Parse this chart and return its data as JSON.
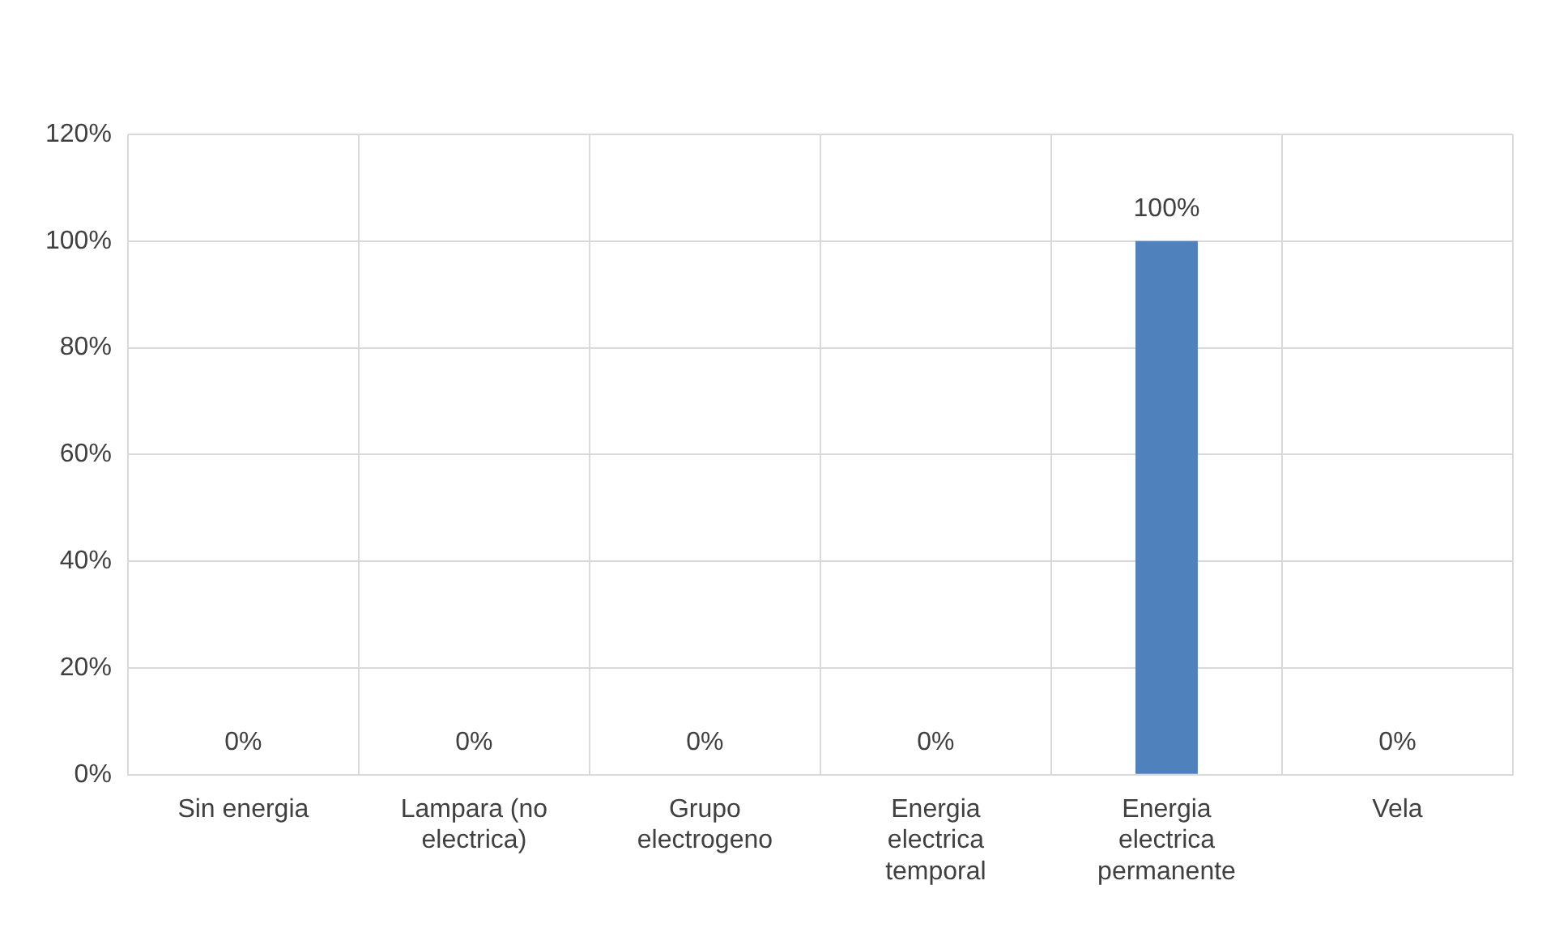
{
  "chart_data": {
    "type": "bar",
    "categories": [
      "Sin energia",
      "Lampara (no electrica)",
      "Grupo electrogeno",
      "Energia electrica temporal",
      "Energia electrica permanente",
      "Vela"
    ],
    "values": [
      0,
      0,
      0,
      0,
      100,
      0
    ],
    "color": "#4f81bd",
    "value_labels": [
      "0%",
      "0%",
      "0%",
      "0%",
      "100%",
      "0%"
    ],
    "ylim": [
      0,
      120
    ],
    "yticks": [
      {
        "value": 0,
        "label": "0%"
      },
      {
        "value": 20,
        "label": "20%"
      },
      {
        "value": 40,
        "label": "40%"
      },
      {
        "value": 60,
        "label": "60%"
      },
      {
        "value": 80,
        "label": "80%"
      },
      {
        "value": 100,
        "label": "100%"
      },
      {
        "value": 120,
        "label": "120%"
      }
    ],
    "grid": true,
    "legend": false
  }
}
